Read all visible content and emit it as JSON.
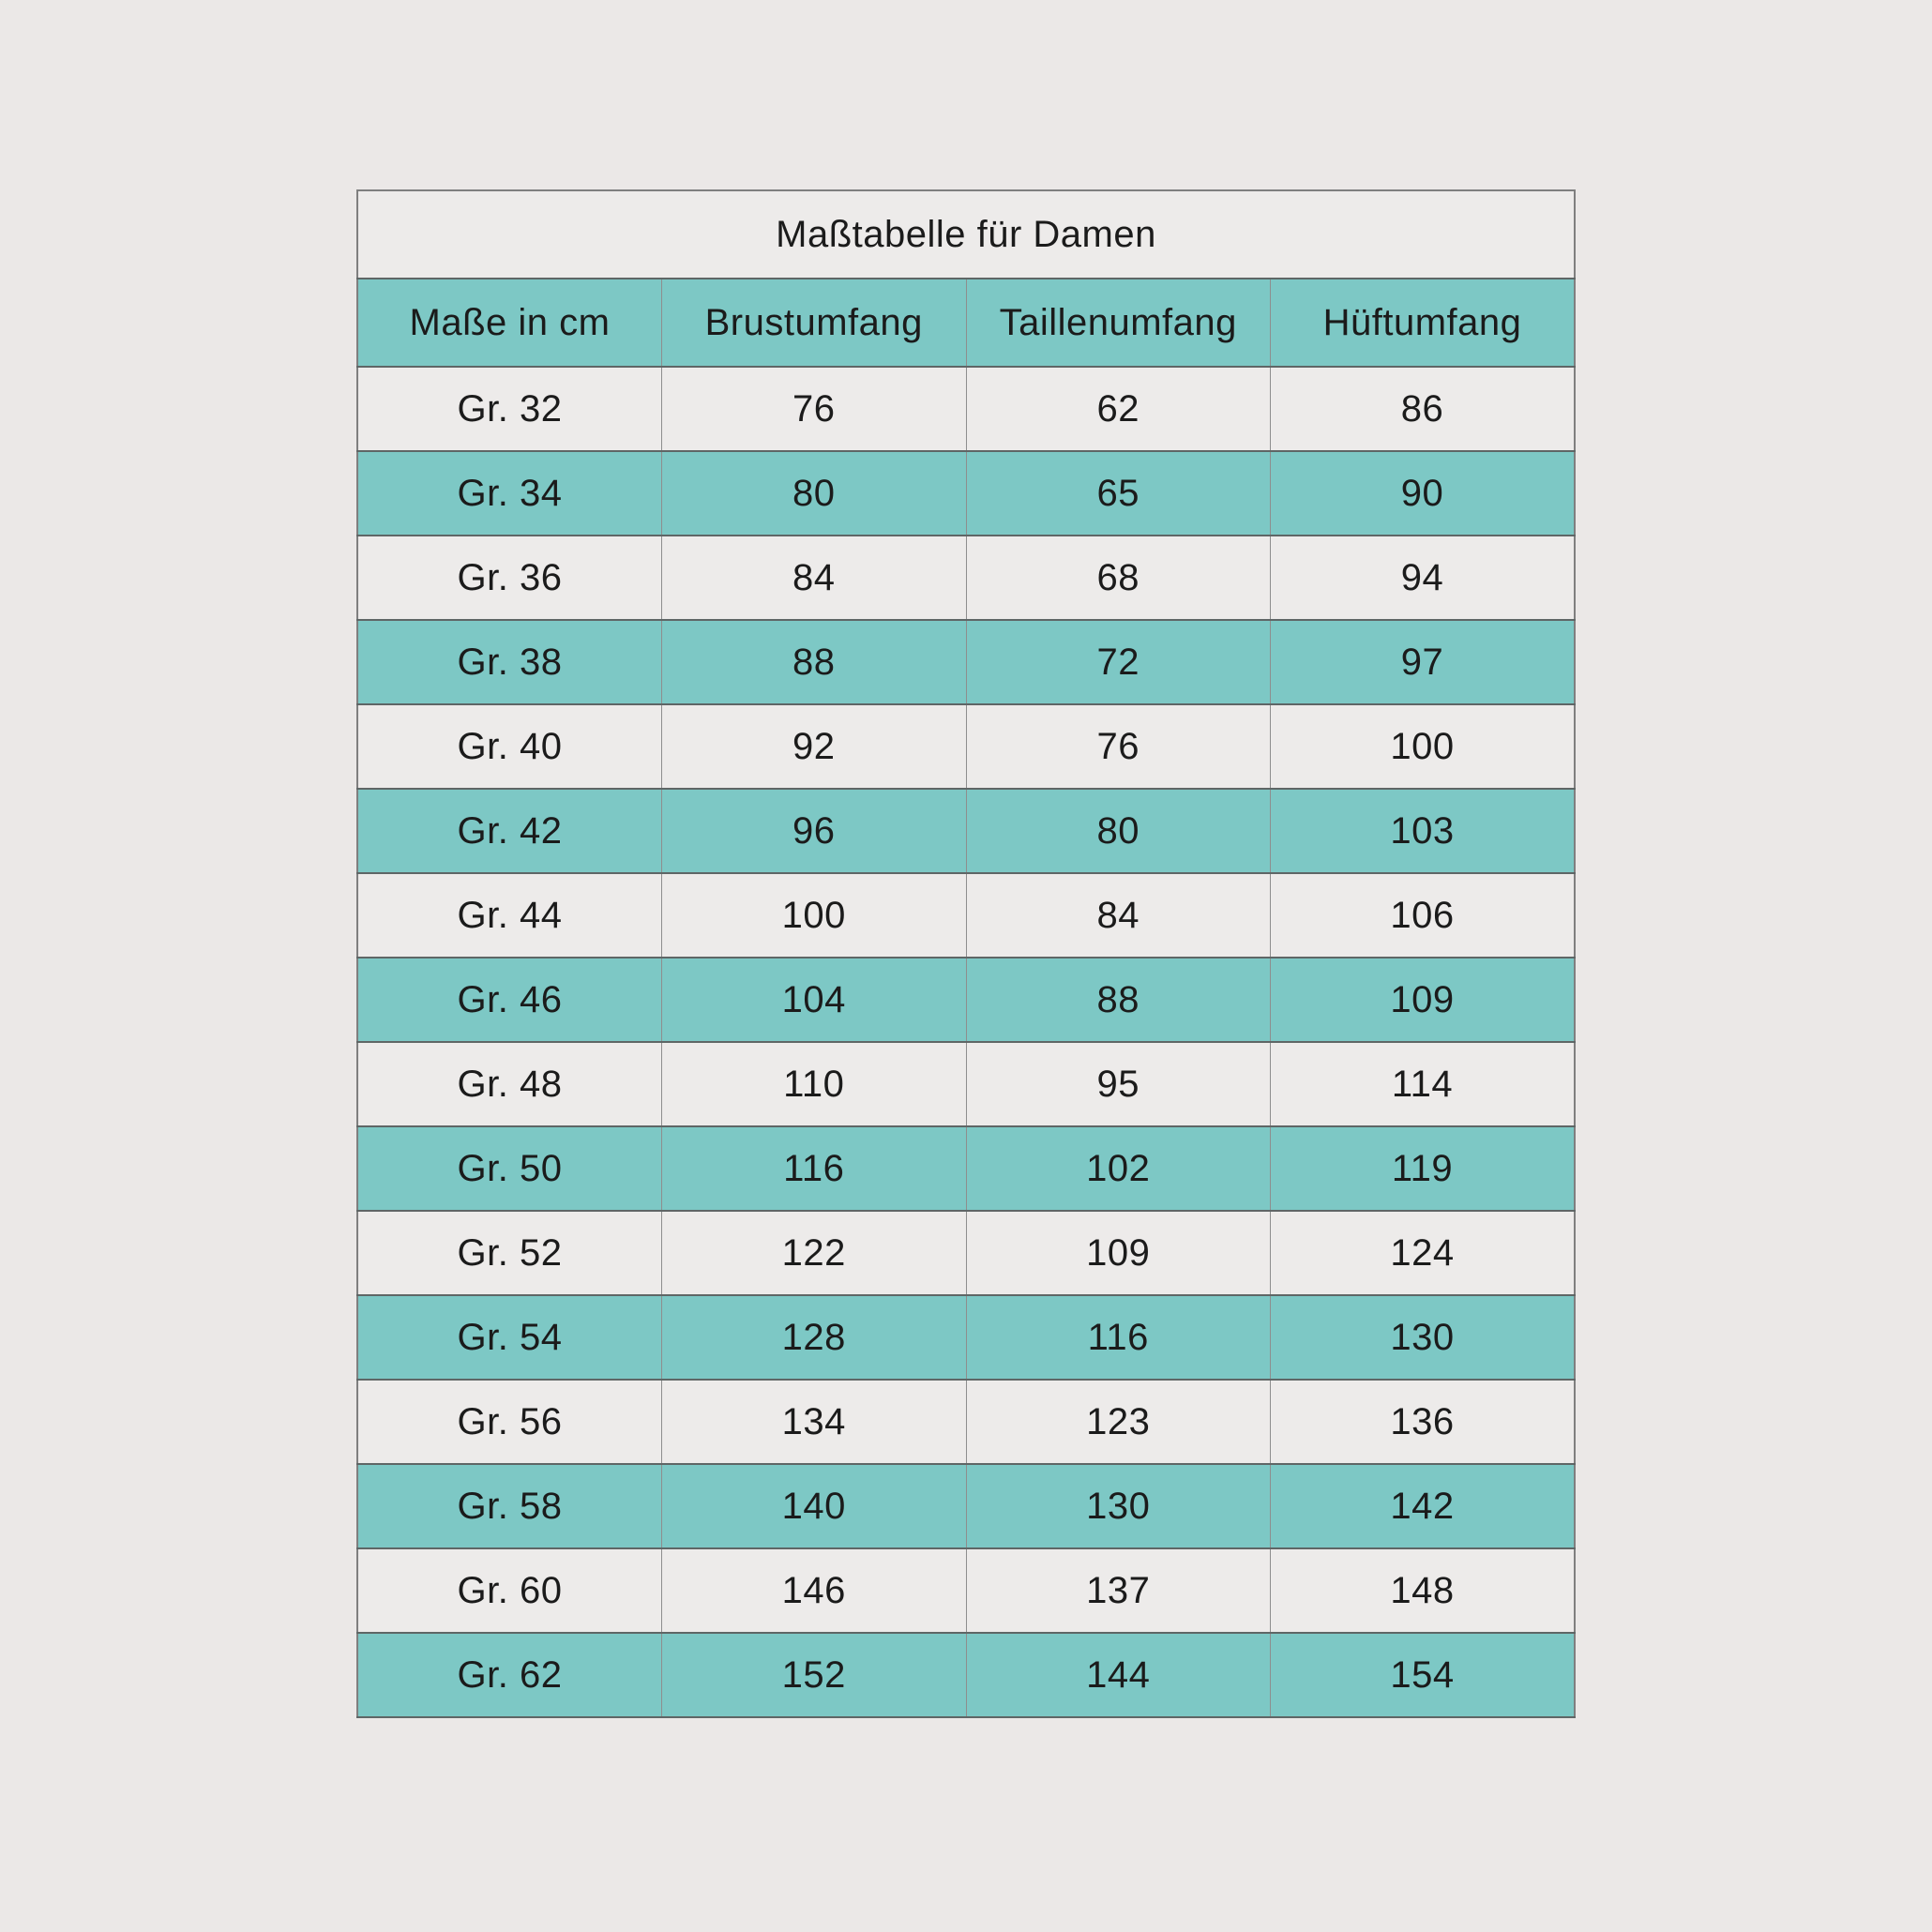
{
  "colors": {
    "page_background": "#ebe8e7",
    "row_light": "#edebea",
    "accent_teal": "#7dc8c5",
    "border_dark": "#5f6666",
    "border_light": "#8e8e8e",
    "text": "#1b1b1b"
  },
  "chart_data": {
    "type": "table",
    "title": "Maßtabelle für Damen",
    "columns": [
      "Maße in cm",
      "Brustumfang",
      "Taillenumfang",
      "Hüftumfang"
    ],
    "rows": [
      [
        "Gr. 32",
        "76",
        "62",
        "86"
      ],
      [
        "Gr. 34",
        "80",
        "65",
        "90"
      ],
      [
        "Gr. 36",
        "84",
        "68",
        "94"
      ],
      [
        "Gr. 38",
        "88",
        "72",
        "97"
      ],
      [
        "Gr. 40",
        "92",
        "76",
        "100"
      ],
      [
        "Gr. 42",
        "96",
        "80",
        "103"
      ],
      [
        "Gr. 44",
        "100",
        "84",
        "106"
      ],
      [
        "Gr. 46",
        "104",
        "88",
        "109"
      ],
      [
        "Gr. 48",
        "110",
        "95",
        "114"
      ],
      [
        "Gr. 50",
        "116",
        "102",
        "119"
      ],
      [
        "Gr. 52",
        "122",
        "109",
        "124"
      ],
      [
        "Gr. 54",
        "128",
        "116",
        "130"
      ],
      [
        "Gr. 56",
        "134",
        "123",
        "136"
      ],
      [
        "Gr. 58",
        "140",
        "130",
        "142"
      ],
      [
        "Gr. 60",
        "146",
        "137",
        "148"
      ],
      [
        "Gr. 62",
        "152",
        "144",
        "154"
      ]
    ],
    "layout": {
      "zebra_striping": "rows Gr. 34/38/42/46/50/54/58/62 have teal background, others light gray",
      "header_background": "teal",
      "title_row": "spans all 4 columns, light background",
      "grid": "full borders on all cells"
    }
  }
}
